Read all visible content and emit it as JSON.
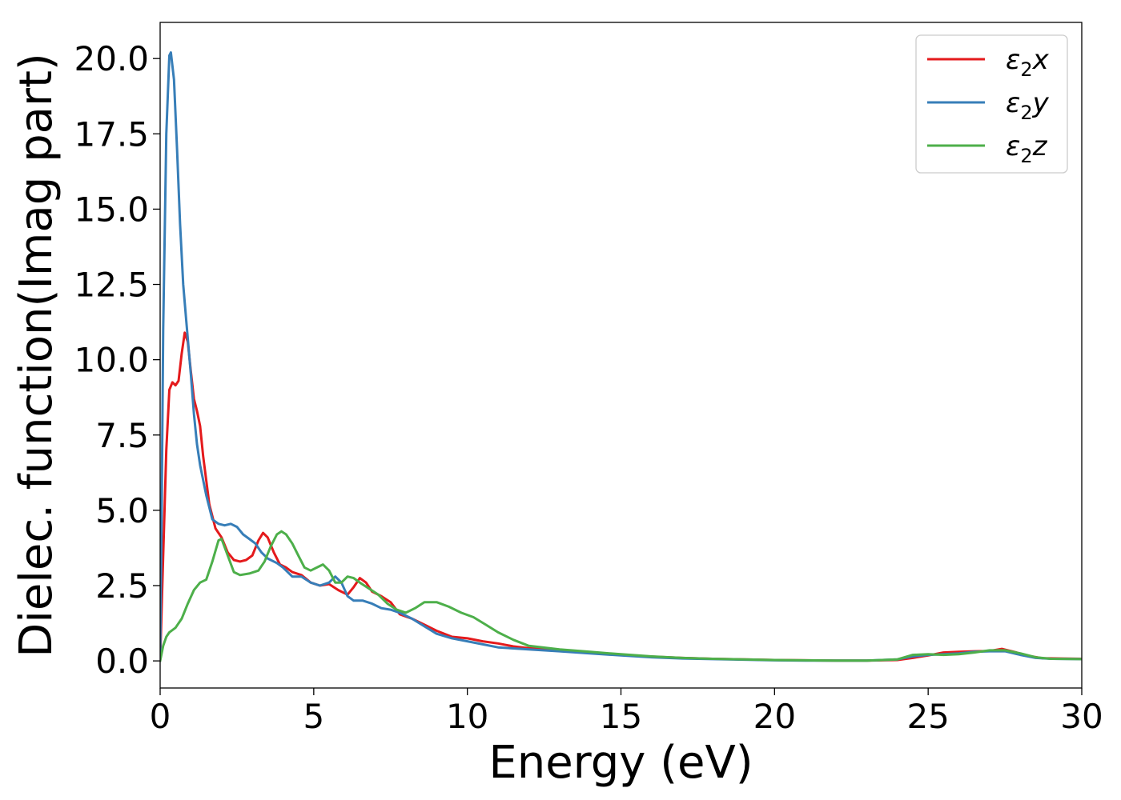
{
  "chart_data": {
    "type": "line",
    "title": "",
    "xlabel": "Energy (eV)",
    "ylabel": "Dielec. function(Imag part)",
    "xlim": [
      0,
      30
    ],
    "ylim": [
      -0.9,
      21.2
    ],
    "xticks": [
      0,
      5,
      10,
      15,
      20,
      25,
      30
    ],
    "xtick_labels": [
      "0",
      "5",
      "10",
      "15",
      "20",
      "25",
      "30"
    ],
    "yticks": [
      0,
      2.5,
      5,
      7.5,
      10,
      12.5,
      15,
      17.5,
      20
    ],
    "ytick_labels": [
      "0.0",
      "2.5",
      "5.0",
      "7.5",
      "10.0",
      "12.5",
      "15.0",
      "17.5",
      "20.0"
    ],
    "grid": false,
    "legend_position": "top-right",
    "series": [
      {
        "name": "ε₂x",
        "legend_base": "ε",
        "legend_sub": "2",
        "legend_var": "x",
        "color": "#e41a1c",
        "points": [
          [
            0,
            0
          ],
          [
            0.1,
            3.5
          ],
          [
            0.2,
            7.0
          ],
          [
            0.3,
            9.0
          ],
          [
            0.4,
            9.25
          ],
          [
            0.5,
            9.15
          ],
          [
            0.6,
            9.3
          ],
          [
            0.7,
            10.2
          ],
          [
            0.8,
            10.9
          ],
          [
            0.9,
            10.6
          ],
          [
            1.0,
            9.6
          ],
          [
            1.1,
            8.7
          ],
          [
            1.2,
            8.3
          ],
          [
            1.3,
            7.8
          ],
          [
            1.4,
            6.8
          ],
          [
            1.6,
            5.2
          ],
          [
            1.8,
            4.4
          ],
          [
            2.0,
            4.1
          ],
          [
            2.2,
            3.6
          ],
          [
            2.4,
            3.35
          ],
          [
            2.6,
            3.3
          ],
          [
            2.8,
            3.35
          ],
          [
            3.0,
            3.5
          ],
          [
            3.2,
            4.0
          ],
          [
            3.35,
            4.25
          ],
          [
            3.5,
            4.1
          ],
          [
            3.7,
            3.6
          ],
          [
            3.9,
            3.2
          ],
          [
            4.1,
            3.1
          ],
          [
            4.3,
            2.95
          ],
          [
            4.6,
            2.85
          ],
          [
            4.9,
            2.6
          ],
          [
            5.2,
            2.5
          ],
          [
            5.5,
            2.55
          ],
          [
            5.8,
            2.35
          ],
          [
            6.1,
            2.2
          ],
          [
            6.3,
            2.45
          ],
          [
            6.5,
            2.75
          ],
          [
            6.7,
            2.6
          ],
          [
            6.9,
            2.3
          ],
          [
            7.2,
            2.15
          ],
          [
            7.5,
            1.95
          ],
          [
            7.8,
            1.55
          ],
          [
            8.2,
            1.4
          ],
          [
            8.6,
            1.2
          ],
          [
            9.0,
            1.0
          ],
          [
            9.5,
            0.8
          ],
          [
            10.0,
            0.75
          ],
          [
            10.5,
            0.65
          ],
          [
            11.0,
            0.58
          ],
          [
            11.5,
            0.48
          ],
          [
            12.0,
            0.42
          ],
          [
            13.0,
            0.36
          ],
          [
            14.0,
            0.28
          ],
          [
            15.0,
            0.2
          ],
          [
            16.0,
            0.14
          ],
          [
            17.0,
            0.1
          ],
          [
            18.0,
            0.07
          ],
          [
            19.0,
            0.05
          ],
          [
            20.0,
            0.03
          ],
          [
            21.0,
            0.02
          ],
          [
            22.0,
            0.01
          ],
          [
            23.0,
            0.01
          ],
          [
            24.0,
            0.03
          ],
          [
            24.5,
            0.1
          ],
          [
            25.0,
            0.18
          ],
          [
            25.5,
            0.28
          ],
          [
            26.0,
            0.3
          ],
          [
            26.5,
            0.32
          ],
          [
            27.0,
            0.33
          ],
          [
            27.4,
            0.4
          ],
          [
            27.8,
            0.3
          ],
          [
            28.2,
            0.18
          ],
          [
            28.7,
            0.09
          ],
          [
            29.3,
            0.08
          ],
          [
            30.0,
            0.07
          ]
        ]
      },
      {
        "name": "ε₂y",
        "legend_base": "ε",
        "legend_sub": "2",
        "legend_var": "y",
        "color": "#377eb8",
        "points": [
          [
            0,
            0
          ],
          [
            0.05,
            5.0
          ],
          [
            0.1,
            11.0
          ],
          [
            0.2,
            17.5
          ],
          [
            0.3,
            20.1
          ],
          [
            0.35,
            20.2
          ],
          [
            0.45,
            19.3
          ],
          [
            0.55,
            17.0
          ],
          [
            0.65,
            14.5
          ],
          [
            0.75,
            12.5
          ],
          [
            0.85,
            11.3
          ],
          [
            1.0,
            9.5
          ],
          [
            1.1,
            8.2
          ],
          [
            1.2,
            7.2
          ],
          [
            1.3,
            6.5
          ],
          [
            1.5,
            5.5
          ],
          [
            1.7,
            4.7
          ],
          [
            1.9,
            4.55
          ],
          [
            2.1,
            4.5
          ],
          [
            2.3,
            4.55
          ],
          [
            2.5,
            4.45
          ],
          [
            2.7,
            4.2
          ],
          [
            2.9,
            4.05
          ],
          [
            3.1,
            3.9
          ],
          [
            3.3,
            3.6
          ],
          [
            3.5,
            3.4
          ],
          [
            3.8,
            3.25
          ],
          [
            4.0,
            3.1
          ],
          [
            4.3,
            2.8
          ],
          [
            4.6,
            2.8
          ],
          [
            4.9,
            2.6
          ],
          [
            5.2,
            2.5
          ],
          [
            5.5,
            2.6
          ],
          [
            5.7,
            2.8
          ],
          [
            5.9,
            2.6
          ],
          [
            6.1,
            2.15
          ],
          [
            6.3,
            2.0
          ],
          [
            6.6,
            2.0
          ],
          [
            6.9,
            1.9
          ],
          [
            7.2,
            1.75
          ],
          [
            7.5,
            1.7
          ],
          [
            7.8,
            1.6
          ],
          [
            8.2,
            1.4
          ],
          [
            8.6,
            1.15
          ],
          [
            9.0,
            0.9
          ],
          [
            9.5,
            0.75
          ],
          [
            10.0,
            0.65
          ],
          [
            10.5,
            0.55
          ],
          [
            11.0,
            0.45
          ],
          [
            12.0,
            0.38
          ],
          [
            13.0,
            0.32
          ],
          [
            14.0,
            0.25
          ],
          [
            15.0,
            0.18
          ],
          [
            16.0,
            0.12
          ],
          [
            17.0,
            0.08
          ],
          [
            18.0,
            0.06
          ],
          [
            19.0,
            0.04
          ],
          [
            20.0,
            0.02
          ],
          [
            21.0,
            0.01
          ],
          [
            22.0,
            0.01
          ],
          [
            23.0,
            0.01
          ],
          [
            24.0,
            0.05
          ],
          [
            24.5,
            0.15
          ],
          [
            25.0,
            0.2
          ],
          [
            25.5,
            0.22
          ],
          [
            26.0,
            0.25
          ],
          [
            26.5,
            0.3
          ],
          [
            27.0,
            0.32
          ],
          [
            27.5,
            0.32
          ],
          [
            28.0,
            0.2
          ],
          [
            28.5,
            0.1
          ],
          [
            29.0,
            0.07
          ],
          [
            30.0,
            0.06
          ]
        ]
      },
      {
        "name": "ε₂z",
        "legend_base": "ε",
        "legend_sub": "2",
        "legend_var": "z",
        "color": "#4daf4a",
        "points": [
          [
            0,
            0
          ],
          [
            0.1,
            0.5
          ],
          [
            0.2,
            0.8
          ],
          [
            0.3,
            0.95
          ],
          [
            0.5,
            1.1
          ],
          [
            0.7,
            1.4
          ],
          [
            0.9,
            1.9
          ],
          [
            1.1,
            2.35
          ],
          [
            1.3,
            2.6
          ],
          [
            1.5,
            2.7
          ],
          [
            1.7,
            3.3
          ],
          [
            1.9,
            4.0
          ],
          [
            2.0,
            4.05
          ],
          [
            2.2,
            3.5
          ],
          [
            2.4,
            2.95
          ],
          [
            2.6,
            2.85
          ],
          [
            2.9,
            2.9
          ],
          [
            3.2,
            3.0
          ],
          [
            3.4,
            3.3
          ],
          [
            3.6,
            3.8
          ],
          [
            3.8,
            4.2
          ],
          [
            3.95,
            4.3
          ],
          [
            4.1,
            4.2
          ],
          [
            4.3,
            3.9
          ],
          [
            4.5,
            3.5
          ],
          [
            4.7,
            3.1
          ],
          [
            4.9,
            3.0
          ],
          [
            5.1,
            3.1
          ],
          [
            5.3,
            3.2
          ],
          [
            5.5,
            3.0
          ],
          [
            5.7,
            2.6
          ],
          [
            5.9,
            2.6
          ],
          [
            6.1,
            2.8
          ],
          [
            6.3,
            2.75
          ],
          [
            6.5,
            2.6
          ],
          [
            6.8,
            2.4
          ],
          [
            7.1,
            2.2
          ],
          [
            7.4,
            1.9
          ],
          [
            7.7,
            1.7
          ],
          [
            8.0,
            1.6
          ],
          [
            8.3,
            1.75
          ],
          [
            8.6,
            1.95
          ],
          [
            9.0,
            1.95
          ],
          [
            9.4,
            1.8
          ],
          [
            9.8,
            1.6
          ],
          [
            10.2,
            1.45
          ],
          [
            10.6,
            1.2
          ],
          [
            11.0,
            0.95
          ],
          [
            11.5,
            0.7
          ],
          [
            12.0,
            0.5
          ],
          [
            13.0,
            0.38
          ],
          [
            14.0,
            0.3
          ],
          [
            15.0,
            0.22
          ],
          [
            16.0,
            0.15
          ],
          [
            17.0,
            0.1
          ],
          [
            18.0,
            0.07
          ],
          [
            19.0,
            0.05
          ],
          [
            20.0,
            0.03
          ],
          [
            21.0,
            0.02
          ],
          [
            22.0,
            0.01
          ],
          [
            23.0,
            0.01
          ],
          [
            24.0,
            0.05
          ],
          [
            24.5,
            0.2
          ],
          [
            25.0,
            0.22
          ],
          [
            25.5,
            0.2
          ],
          [
            26.0,
            0.22
          ],
          [
            26.5,
            0.28
          ],
          [
            27.0,
            0.35
          ],
          [
            27.5,
            0.35
          ],
          [
            28.0,
            0.25
          ],
          [
            28.5,
            0.12
          ],
          [
            29.0,
            0.07
          ],
          [
            30.0,
            0.06
          ]
        ]
      }
    ]
  }
}
